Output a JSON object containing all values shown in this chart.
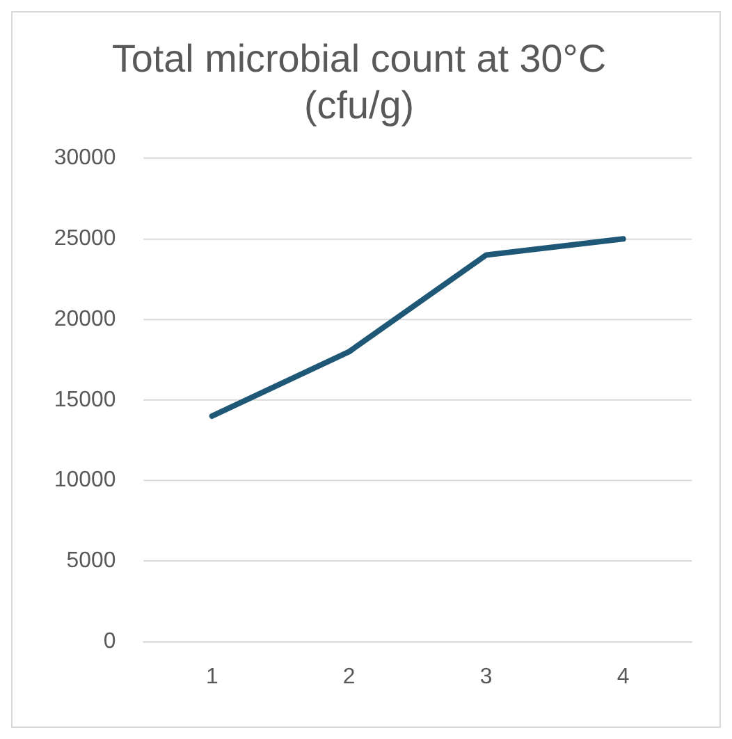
{
  "chart_data": {
    "type": "line",
    "title": "Total microbial count at 30°C (cfu/g)",
    "categories": [
      "1",
      "2",
      "3",
      "4"
    ],
    "series": [
      {
        "color": "#1f5877",
        "values": [
          14000,
          18000,
          24000,
          25000
        ]
      }
    ],
    "ylim": [
      0,
      30000
    ],
    "yticks": [
      0,
      5000,
      10000,
      15000,
      20000,
      25000,
      30000
    ],
    "grid": "y",
    "legend": false,
    "marker": "none",
    "line_style": "solid"
  }
}
